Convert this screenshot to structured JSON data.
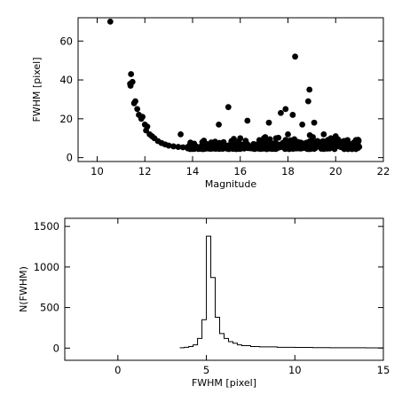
{
  "chart_data": [
    {
      "type": "scatter",
      "xlabel": "Magnitude",
      "ylabel": "FWHM [pixel]",
      "xlim": [
        9.2,
        22.0
      ],
      "ylim": [
        -2,
        72
      ],
      "xticks": [
        10,
        12,
        14,
        16,
        18,
        20,
        22
      ],
      "yticks": [
        0,
        20,
        40,
        60
      ],
      "grid": false,
      "points": [
        [
          10.55,
          70
        ],
        [
          11.38,
          38
        ],
        [
          11.4,
          37
        ],
        [
          11.42,
          43
        ],
        [
          11.48,
          39
        ],
        [
          11.55,
          28
        ],
        [
          11.6,
          29
        ],
        [
          11.68,
          25
        ],
        [
          11.75,
          22
        ],
        [
          11.85,
          20
        ],
        [
          11.9,
          21
        ],
        [
          12.0,
          17
        ],
        [
          12.05,
          14
        ],
        [
          12.1,
          16
        ],
        [
          12.2,
          12
        ],
        [
          12.3,
          11
        ],
        [
          12.4,
          10
        ],
        [
          12.55,
          8.5
        ],
        [
          12.7,
          7.5
        ],
        [
          12.85,
          6.8
        ],
        [
          13.0,
          6.2
        ],
        [
          13.2,
          5.8
        ],
        [
          13.4,
          5.5
        ],
        [
          13.6,
          5.3
        ],
        [
          13.8,
          5.2
        ],
        [
          14.0,
          5.1
        ],
        [
          14.3,
          5.0
        ],
        [
          14.6,
          5.0
        ],
        [
          14.9,
          5.0
        ],
        [
          15.2,
          5.0
        ],
        [
          15.5,
          5.0
        ],
        [
          15.8,
          5.0
        ],
        [
          16.1,
          5.0
        ],
        [
          16.4,
          5.1
        ],
        [
          16.7,
          5.1
        ],
        [
          17.0,
          5.1
        ],
        [
          17.3,
          5.2
        ],
        [
          17.6,
          5.2
        ],
        [
          17.9,
          5.2
        ],
        [
          18.2,
          5.3
        ],
        [
          18.5,
          5.3
        ],
        [
          18.8,
          5.3
        ],
        [
          19.1,
          5.4
        ],
        [
          19.4,
          5.4
        ],
        [
          19.7,
          5.4
        ],
        [
          20.0,
          5.5
        ],
        [
          20.3,
          5.5
        ],
        [
          20.6,
          5.6
        ],
        [
          20.9,
          5.6
        ],
        [
          13.5,
          12
        ],
        [
          15.1,
          17
        ],
        [
          15.5,
          26
        ],
        [
          16.3,
          19
        ],
        [
          17.2,
          18
        ],
        [
          17.7,
          23
        ],
        [
          17.9,
          25
        ],
        [
          18.2,
          22
        ],
        [
          18.3,
          52
        ],
        [
          18.9,
          35
        ],
        [
          18.85,
          29
        ],
        [
          19.1,
          18
        ],
        [
          18.6,
          17
        ],
        [
          16.0,
          10
        ],
        [
          17.5,
          10
        ],
        [
          19.5,
          12
        ],
        [
          20.0,
          11
        ],
        [
          18.0,
          12
        ],
        [
          16.8,
          9
        ],
        [
          19.8,
          10
        ],
        [
          14.6,
          7
        ],
        [
          15.3,
          8
        ],
        [
          17.0,
          8
        ],
        [
          20.5,
          9
        ],
        [
          13.9,
          7
        ]
      ]
    },
    {
      "type": "histogram",
      "xlabel": "FWHM [pixel]",
      "ylabel": "N(FWHM)",
      "xlim": [
        -3.0,
        15.0
      ],
      "ylim": [
        -150,
        1600
      ],
      "xticks": [
        0,
        5,
        10,
        15
      ],
      "yticks": [
        0,
        500,
        1000,
        1500
      ],
      "grid": false,
      "bin_edges": [
        3.5,
        3.75,
        4.0,
        4.25,
        4.5,
        4.75,
        5.0,
        5.25,
        5.5,
        5.75,
        6.0,
        6.25,
        6.5,
        6.75,
        7.0,
        7.5,
        8.0,
        9.0,
        10.0,
        11.0,
        12.0,
        13.0,
        14.0,
        15.0
      ],
      "counts": [
        5,
        10,
        20,
        40,
        120,
        350,
        1380,
        870,
        380,
        180,
        120,
        80,
        60,
        40,
        30,
        20,
        15,
        10,
        8,
        6,
        5,
        4,
        3
      ]
    }
  ]
}
